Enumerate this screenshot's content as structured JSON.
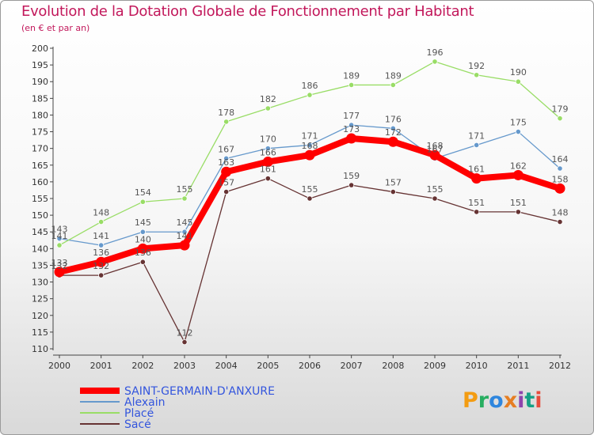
{
  "chart_data": {
    "type": "line",
    "title": "Evolution de la Dotation Globale de Fonctionnement par Habitant",
    "subtitle": "(en € et par an)",
    "xlabel": "",
    "ylabel": "",
    "ylim": [
      110,
      200
    ],
    "ytick_step": 5,
    "grid": false,
    "legend_position": "bottom-left",
    "x": [
      "2000",
      "2001",
      "2002",
      "2003",
      "2004",
      "2005",
      "2006",
      "2007",
      "2008",
      "2009",
      "2010",
      "2011",
      "2012"
    ],
    "series": [
      {
        "name": "SAINT-GERMAIN-D'ANXURE",
        "color": "#ff0000",
        "values": [
          133,
          136,
          140,
          141,
          163,
          166,
          168,
          173,
          172,
          168,
          161,
          162,
          158
        ]
      },
      {
        "name": "Alexain",
        "color": "#6699cc",
        "values": [
          143,
          141,
          145,
          145,
          167,
          170,
          171,
          177,
          176,
          167,
          171,
          175,
          164
        ]
      },
      {
        "name": "Placé",
        "color": "#99dd66",
        "values": [
          141,
          148,
          154,
          155,
          178,
          182,
          186,
          189,
          189,
          196,
          192,
          190,
          179
        ]
      },
      {
        "name": "Sacé",
        "color": "#663333",
        "values": [
          132,
          132,
          136,
          112,
          157,
          161,
          155,
          159,
          157,
          155,
          151,
          151,
          148
        ]
      }
    ]
  },
  "logo": {
    "letters": [
      "P",
      "r",
      "o",
      "x",
      "i",
      "t",
      "i"
    ]
  }
}
